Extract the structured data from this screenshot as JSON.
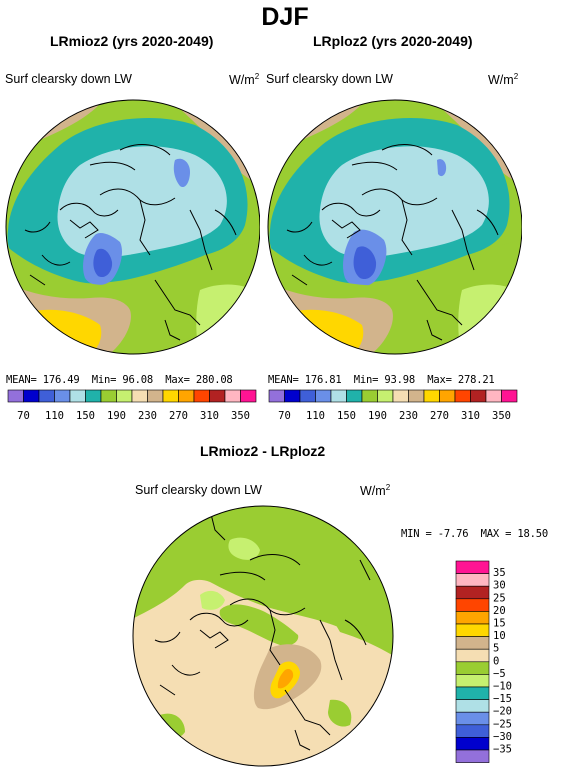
{
  "figure": {
    "title": "DJF"
  },
  "panels": [
    {
      "title": "LRmioz2 (yrs 2020-2049)",
      "variable": "Surf clearsky down LW",
      "units": "W/m",
      "units_exp": "2",
      "stats": {
        "mean_label": "MEAN=",
        "mean": "176.49",
        "min_label": "Min=",
        "min": "96.08",
        "max_label": "Max=",
        "max": "280.08"
      }
    },
    {
      "title": "LRploz2 (yrs 2020-2049)",
      "variable": "Surf clearsky down LW",
      "units": "W/m",
      "units_exp": "2",
      "stats": {
        "mean_label": "MEAN=",
        "mean": "176.81",
        "min_label": "Min=",
        "min": "93.98",
        "max_label": "Max=",
        "max": "278.21"
      }
    },
    {
      "title": "LRmioz2 - LRploz2",
      "variable": "Surf clearsky down LW",
      "units": "W/m",
      "units_exp": "2",
      "stats": {
        "min_label": "MIN =",
        "min": "-7.76",
        "max_label": "MAX =",
        "max": "18.50"
      }
    }
  ],
  "colorbars": {
    "abs": {
      "labels": [
        "70",
        "110",
        "150",
        "190",
        "230",
        "270",
        "310",
        "350"
      ],
      "colors": [
        "#9370db",
        "#0000cd",
        "#3f5fd8",
        "#6a8fe8",
        "#afe0e6",
        "#20b2aa",
        "#9acd32",
        "#c6f070",
        "#f5deb3",
        "#d2b48c",
        "#ffd700",
        "#ffa500",
        "#ff4500",
        "#b22222",
        "#ffb6c1",
        "#ff1493"
      ]
    },
    "diff": {
      "labels": [
        "35",
        "30",
        "25",
        "20",
        "15",
        "10",
        "5",
        "0",
        "−5",
        "−10",
        "−15",
        "−20",
        "−25",
        "−30",
        "−35"
      ],
      "colors": [
        "#ff1493",
        "#ffb6c1",
        "#b22222",
        "#ff4500",
        "#ffa500",
        "#ffd700",
        "#d2b48c",
        "#f5deb3",
        "#9acd32",
        "#c6f070",
        "#20b2aa",
        "#afe0e6",
        "#6a8fe8",
        "#3f5fd8",
        "#0000cd",
        "#9370db"
      ]
    }
  }
}
